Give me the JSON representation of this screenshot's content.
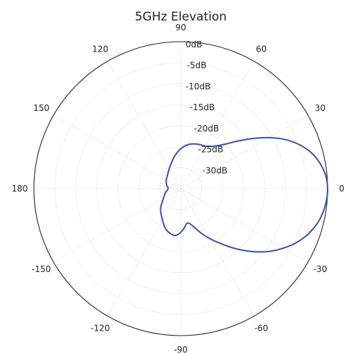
{
  "chart_data": {
    "type": "line",
    "projection": "polar",
    "title": "5GHz  Elevation",
    "angle_unit": "degrees",
    "angle_ticks": [
      0,
      30,
      60,
      90,
      120,
      150,
      180,
      -150,
      -120,
      -90,
      -60,
      -30
    ],
    "angle_tick_labels": [
      "0",
      "30",
      "60",
      "90",
      "120",
      "150",
      "180",
      "-150",
      "-120",
      "-90",
      "-60",
      "-30"
    ],
    "radial_unit": "dB",
    "rlim": [
      -35,
      0
    ],
    "radial_ticks": [
      0,
      -5,
      -10,
      -15,
      -20,
      -25,
      -30
    ],
    "radial_tick_labels": [
      "0dB",
      "-5dB",
      "-10dB",
      "-15dB",
      "-20dB",
      "-25dB",
      "-30dB"
    ],
    "grid": true,
    "series": [
      {
        "color": "#3a4fb5",
        "points": [
          {
            "angle": 0,
            "gain": 0
          },
          {
            "angle": 5,
            "gain": -0.3
          },
          {
            "angle": 10,
            "gain": -1.2
          },
          {
            "angle": 15,
            "gain": -2.6
          },
          {
            "angle": 20,
            "gain": -4.7
          },
          {
            "angle": 25,
            "gain": -7.4
          },
          {
            "angle": 30,
            "gain": -10.7
          },
          {
            "angle": 35,
            "gain": -14.2
          },
          {
            "angle": 40,
            "gain": -17.4
          },
          {
            "angle": 45,
            "gain": -20.0
          },
          {
            "angle": 50,
            "gain": -21.7
          },
          {
            "angle": 55,
            "gain": -22.7
          },
          {
            "angle": 60,
            "gain": -23.3
          },
          {
            "angle": 70,
            "gain": -23.7
          },
          {
            "angle": 80,
            "gain": -24.3
          },
          {
            "angle": 90,
            "gain": -25.5
          },
          {
            "angle": 100,
            "gain": -27.0
          },
          {
            "angle": 110,
            "gain": -28.5
          },
          {
            "angle": 120,
            "gain": -29.5
          },
          {
            "angle": 135,
            "gain": -30.5
          },
          {
            "angle": 150,
            "gain": -31.0
          },
          {
            "angle": 165,
            "gain": -31.5
          },
          {
            "angle": 180,
            "gain": -32.0
          },
          {
            "angle": -165,
            "gain": -31.2
          },
          {
            "angle": -150,
            "gain": -30.2
          },
          {
            "angle": -135,
            "gain": -28.2
          },
          {
            "angle": -120,
            "gain": -26.3
          },
          {
            "angle": -110,
            "gain": -24.7
          },
          {
            "angle": -100,
            "gain": -23.8
          },
          {
            "angle": -95,
            "gain": -23.9
          },
          {
            "angle": -90,
            "gain": -24.6
          },
          {
            "angle": -85,
            "gain": -25.6
          },
          {
            "angle": -80,
            "gain": -26.6
          },
          {
            "angle": -75,
            "gain": -26.3
          },
          {
            "angle": -70,
            "gain": -25.0
          },
          {
            "angle": -65,
            "gain": -23.2
          },
          {
            "angle": -60,
            "gain": -21.3
          },
          {
            "angle": -55,
            "gain": -19.3
          },
          {
            "angle": -50,
            "gain": -16.9
          },
          {
            "angle": -45,
            "gain": -14.3
          },
          {
            "angle": -40,
            "gain": -11.6
          },
          {
            "angle": -35,
            "gain": -9.0
          },
          {
            "angle": -30,
            "gain": -6.7
          },
          {
            "angle": -25,
            "gain": -4.6
          },
          {
            "angle": -20,
            "gain": -2.9
          },
          {
            "angle": -15,
            "gain": -1.6
          },
          {
            "angle": -10,
            "gain": -0.7
          },
          {
            "angle": -5,
            "gain": -0.2
          },
          {
            "angle": 0,
            "gain": 0
          }
        ]
      }
    ]
  }
}
